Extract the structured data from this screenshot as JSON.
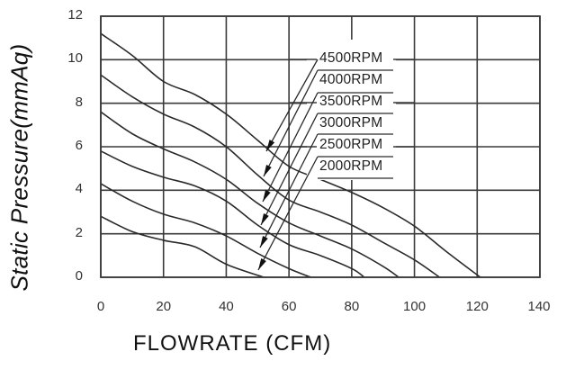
{
  "chart_data": {
    "type": "line",
    "title": "",
    "xlabel": "FLOWRATE (CFM)",
    "ylabel": "Static  Pressure(mmAq)",
    "xlim": [
      0,
      140
    ],
    "ylim": [
      0,
      12
    ],
    "x_ticks": [
      0,
      20,
      40,
      60,
      80,
      100,
      120,
      140
    ],
    "y_ticks": [
      0,
      2,
      4,
      6,
      8,
      10,
      12
    ],
    "grid": true,
    "legend_position": "inside, upper-center with pointer arrows to each curve",
    "series": [
      {
        "name": "4500RPM",
        "points": [
          [
            0,
            11.2
          ],
          [
            10,
            10.2
          ],
          [
            20,
            9.0
          ],
          [
            30,
            8.4
          ],
          [
            40,
            7.5
          ],
          [
            50,
            6.3
          ],
          [
            60,
            5.1
          ],
          [
            70,
            4.5
          ],
          [
            80,
            3.9
          ],
          [
            90,
            3.2
          ],
          [
            100,
            2.35
          ],
          [
            110,
            1.2
          ],
          [
            121,
            0
          ]
        ]
      },
      {
        "name": "4000RPM",
        "points": [
          [
            0,
            9.3
          ],
          [
            10,
            8.3
          ],
          [
            20,
            7.5
          ],
          [
            30,
            6.9
          ],
          [
            40,
            6.0
          ],
          [
            50,
            4.7
          ],
          [
            60,
            3.55
          ],
          [
            70,
            3.0
          ],
          [
            80,
            2.4
          ],
          [
            90,
            1.6
          ],
          [
            100,
            0.8
          ],
          [
            108,
            0
          ]
        ]
      },
      {
        "name": "3500RPM",
        "points": [
          [
            0,
            7.6
          ],
          [
            10,
            6.6
          ],
          [
            20,
            5.9
          ],
          [
            30,
            5.3
          ],
          [
            40,
            4.5
          ],
          [
            50,
            3.4
          ],
          [
            60,
            2.5
          ],
          [
            70,
            1.9
          ],
          [
            80,
            1.3
          ],
          [
            90,
            0.5
          ],
          [
            95,
            0
          ]
        ]
      },
      {
        "name": "3000RPM",
        "points": [
          [
            0,
            5.8
          ],
          [
            10,
            5.1
          ],
          [
            20,
            4.6
          ],
          [
            30,
            4.2
          ],
          [
            40,
            3.5
          ],
          [
            50,
            2.4
          ],
          [
            60,
            1.5
          ],
          [
            70,
            1.0
          ],
          [
            80,
            0.4
          ],
          [
            84,
            0
          ]
        ]
      },
      {
        "name": "2500RPM",
        "points": [
          [
            0,
            4.3
          ],
          [
            10,
            3.5
          ],
          [
            20,
            2.9
          ],
          [
            30,
            2.5
          ],
          [
            40,
            1.9
          ],
          [
            50,
            1.1
          ],
          [
            60,
            0.4
          ],
          [
            67,
            0
          ]
        ]
      },
      {
        "name": "2000RPM",
        "points": [
          [
            0,
            2.8
          ],
          [
            10,
            2.1
          ],
          [
            20,
            1.7
          ],
          [
            30,
            1.4
          ],
          [
            40,
            0.6
          ],
          [
            52,
            0
          ]
        ]
      }
    ]
  },
  "axes": {
    "y_tick_labels": [
      "0",
      "2",
      "4",
      "6",
      "8",
      "10",
      "12"
    ],
    "x_tick_labels": [
      "0",
      "20",
      "40",
      "60",
      "80",
      "100",
      "120",
      "140"
    ],
    "x_title": "FLOWRATE (CFM)",
    "y_title": "Static  Pressure(mmAq)"
  },
  "legend": {
    "labels": [
      "4500RPM",
      "4000RPM",
      "3500RPM",
      "3000RPM",
      "2500RPM",
      "2000RPM"
    ]
  },
  "colors": {
    "line": "#2a2a2a",
    "grid": "#3a3a3a",
    "background": "#ffffff"
  }
}
